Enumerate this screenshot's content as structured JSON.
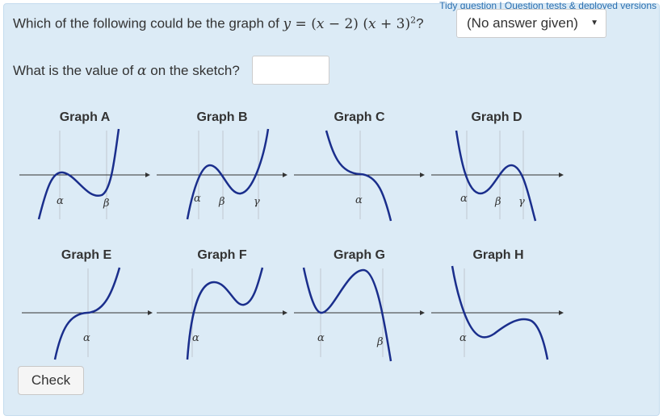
{
  "header_links": {
    "tidy": "Tidy question",
    "sep": " | ",
    "tests": "Question tests & deployed versions"
  },
  "question1": {
    "prefix": "Which of the following could be the graph of ",
    "y": "y",
    "eq": " = (",
    "x1": "x",
    "m": " − 2) (",
    "x2": "x",
    "p": " + 3)",
    "exp": "2",
    "suffix": "?"
  },
  "dropdown": {
    "selected": "(No answer given)",
    "arrow_icon": "caret-down-icon"
  },
  "question2": {
    "prefix": "What is the value of ",
    "alpha": "α",
    "suffix": " on the sketch?"
  },
  "answer_input": {
    "value": ""
  },
  "graphs": [
    {
      "title": "Graph A",
      "labels": [
        "α",
        "β"
      ]
    },
    {
      "title": "Graph B",
      "labels": [
        "α",
        "β",
        "γ"
      ]
    },
    {
      "title": "Graph C",
      "labels": [
        "α"
      ]
    },
    {
      "title": "Graph D",
      "labels": [
        "α",
        "β",
        "γ"
      ]
    },
    {
      "title": "Graph E",
      "labels": [
        "α"
      ]
    },
    {
      "title": "Graph F",
      "labels": [
        "α"
      ]
    },
    {
      "title": "Graph G",
      "labels": [
        "α",
        "β"
      ]
    },
    {
      "title": "Graph H",
      "labels": [
        "α"
      ]
    }
  ],
  "check_button": {
    "label": "Check"
  },
  "colors": {
    "curve": "#1a2e8c",
    "axis": "#333333",
    "guide": "#c9d3dd",
    "panel": "#dcebf6",
    "link": "#2a6fb0"
  }
}
